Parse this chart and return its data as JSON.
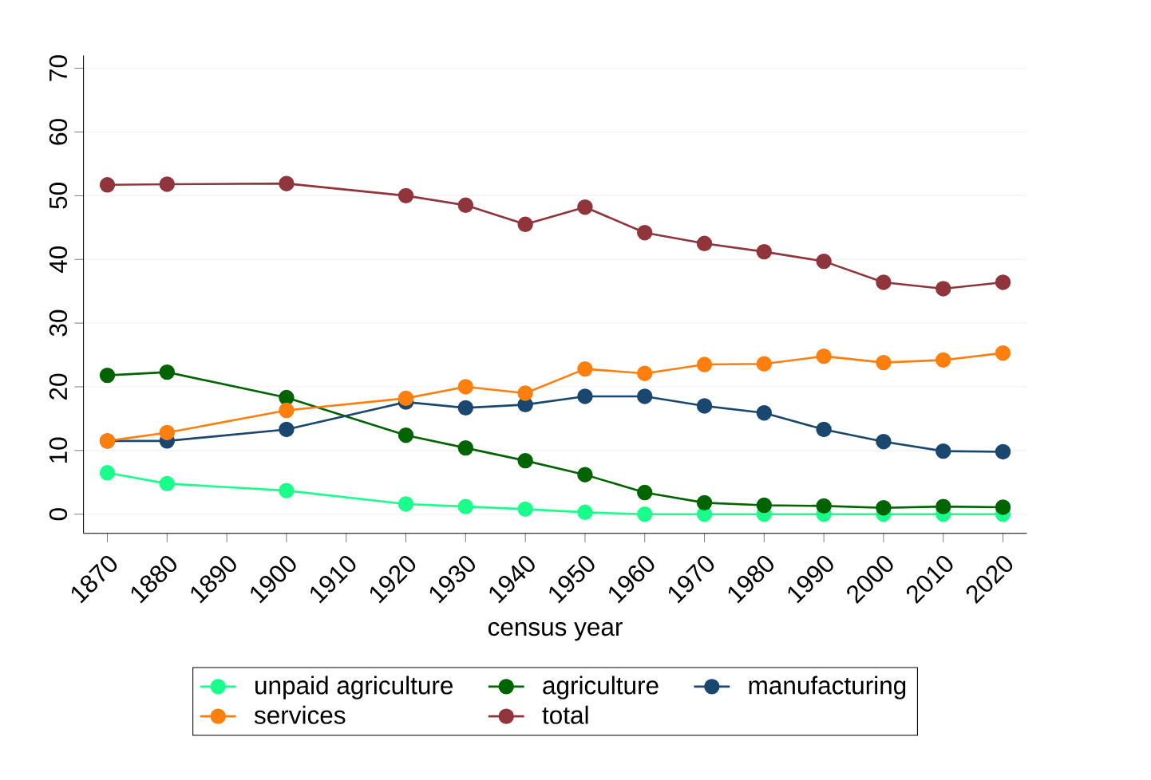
{
  "chart_data": {
    "type": "line",
    "xlabel": "census year",
    "x": [
      1870,
      1880,
      1900,
      1920,
      1930,
      1940,
      1950,
      1960,
      1970,
      1980,
      1990,
      2000,
      2010,
      2020
    ],
    "xlim": [
      1866,
      2024
    ],
    "xticks": [
      1870,
      1880,
      1890,
      1900,
      1910,
      1920,
      1930,
      1940,
      1950,
      1960,
      1970,
      1980,
      1990,
      2000,
      2010,
      2020
    ],
    "ylim": [
      -3,
      72
    ],
    "yticks": [
      0,
      10,
      20,
      30,
      40,
      50,
      60,
      70
    ],
    "grid": "y",
    "legend": "bottom",
    "marker": "circle",
    "line_style": "solid",
    "series": [
      {
        "name": "unpaid agriculture",
        "color": "#1aff8c",
        "values": [
          6.5,
          4.8,
          3.7,
          1.6,
          1.2,
          0.8,
          0.3,
          0,
          0,
          0,
          0,
          0,
          0,
          0
        ]
      },
      {
        "name": "agriculture",
        "color": "#006400",
        "values": [
          21.8,
          22.3,
          18.3,
          12.4,
          10.4,
          8.4,
          6.2,
          3.4,
          1.8,
          1.4,
          1.3,
          1,
          1.2,
          1.1
        ]
      },
      {
        "name": "manufacturing",
        "color": "#1a476f",
        "values": [
          11.5,
          11.5,
          13.3,
          17.6,
          16.7,
          17.2,
          18.5,
          18.5,
          17,
          15.9,
          13.3,
          11.4,
          9.9,
          9.8
        ]
      },
      {
        "name": "services",
        "color": "#ff7f0e",
        "values": [
          11.5,
          12.8,
          16.3,
          18.2,
          20,
          19,
          22.8,
          22.1,
          23.5,
          23.6,
          24.8,
          23.8,
          24.2,
          25.3
        ]
      },
      {
        "name": "total",
        "color": "#90353b",
        "values": [
          51.7,
          51.8,
          51.9,
          50,
          48.5,
          45.5,
          48.2,
          44.2,
          42.5,
          41.2,
          39.7,
          36.4,
          35.4,
          36.4
        ]
      }
    ]
  }
}
